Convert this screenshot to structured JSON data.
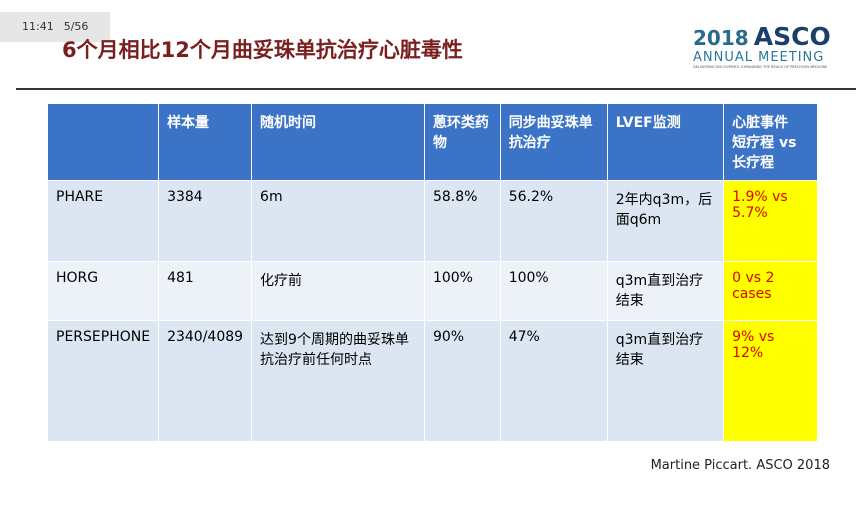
{
  "status": {
    "time": "11:41",
    "slide": "5/56"
  },
  "header": {
    "title": "6个月相比12个月曲妥珠单抗治疗心脏毒性",
    "logo": {
      "year": "2018",
      "brand": "ASCO",
      "subtitle": "ANNUAL MEETING",
      "tagline": "DELIVERING DISCOVERIES: EXPANDING THE REACH OF PRECISION MEDICINE"
    }
  },
  "table": {
    "columns": [
      "",
      "样本量",
      "随机时间",
      "蒽环类药物",
      "同步曲妥珠单抗治疗",
      "LVEF监测",
      "心脏事件\n短疗程 vs长疗程"
    ],
    "rows": [
      [
        "PHARE",
        "3384",
        "6m",
        "58.8%",
        "56.2%",
        "2年内q3m，后面q6m",
        "1.9% vs 5.7%"
      ],
      [
        "HORG",
        "481",
        "化疗前",
        "100%",
        "100%",
        "q3m直到治疗结束",
        "0 vs 2 cases"
      ],
      [
        "PERSEPHONE",
        "2340/4089",
        "达到9个周期的曲妥珠单抗治疗前任何时点",
        "90%",
        "47%",
        "q3m直到治疗结束",
        "9% vs 12%"
      ]
    ]
  },
  "footer": {
    "citation": "Martine Piccart. ASCO 2018"
  }
}
